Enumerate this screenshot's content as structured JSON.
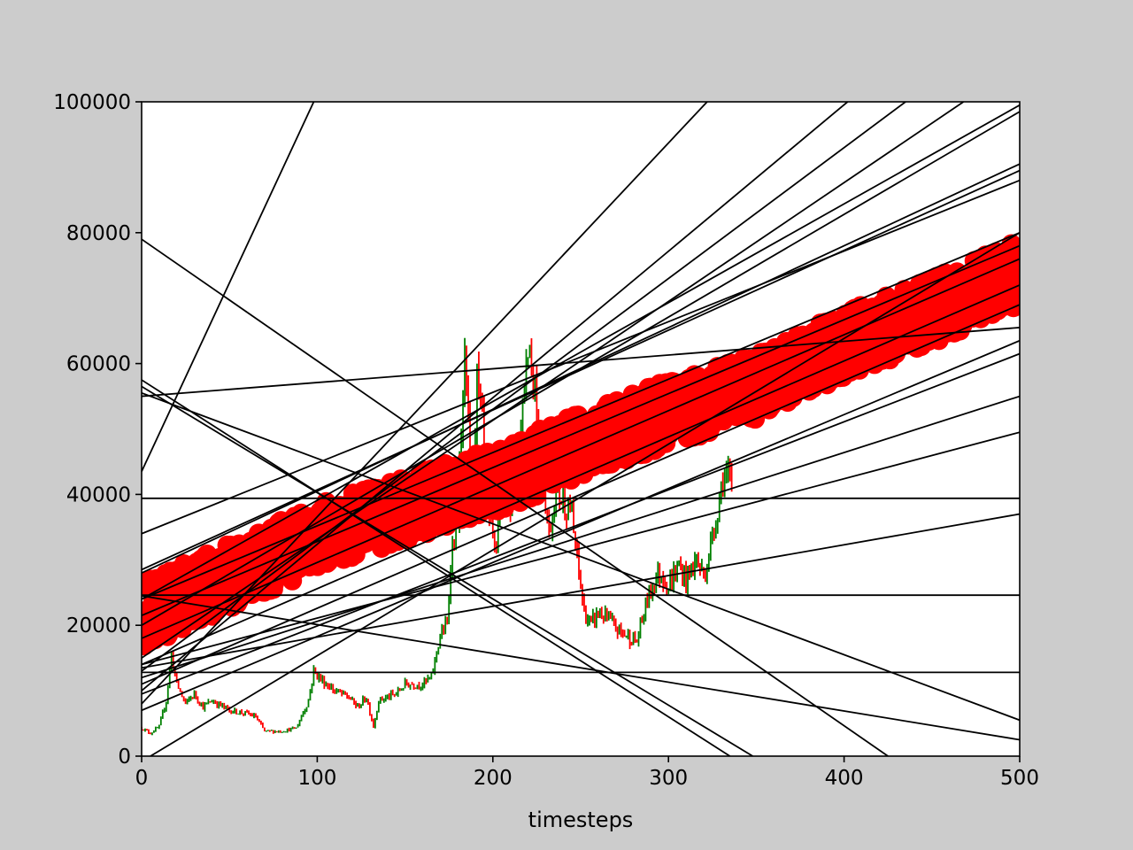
{
  "chart_data": {
    "type": "line",
    "title": "",
    "xlabel": "timesteps",
    "ylabel": "",
    "xlim": [
      0,
      500
    ],
    "ylim": [
      0,
      100000
    ],
    "xticks": [
      0,
      100,
      200,
      300,
      400,
      500
    ],
    "xtick_labels": [
      "0",
      "100",
      "200",
      "300",
      "400",
      "500"
    ],
    "yticks": [
      0,
      20000,
      40000,
      60000,
      80000,
      100000
    ],
    "ytick_labels": [
      "0",
      "20000",
      "40000",
      "60000",
      "80000",
      "100000"
    ],
    "grid": false,
    "legend": "none",
    "colors": {
      "figure_background": "#cccccc",
      "plot_background": "#ffffff",
      "candle_up": "#008000",
      "candle_down": "#ff0000",
      "prediction_points": "#ff0000",
      "trend_lines": "#000000"
    },
    "price_series": {
      "style": "candlestick",
      "x_range": [
        0,
        336
      ],
      "close_keypoints": [
        [
          0,
          4300
        ],
        [
          5,
          3500
        ],
        [
          10,
          4500
        ],
        [
          14,
          8500
        ],
        [
          17,
          15500
        ],
        [
          20,
          11000
        ],
        [
          25,
          8000
        ],
        [
          30,
          9500
        ],
        [
          35,
          7500
        ],
        [
          40,
          8500
        ],
        [
          50,
          7000
        ],
        [
          60,
          6500
        ],
        [
          65,
          6000
        ],
        [
          70,
          3800
        ],
        [
          80,
          3800
        ],
        [
          88,
          4300
        ],
        [
          95,
          8500
        ],
        [
          98,
          13000
        ],
        [
          103,
          11500
        ],
        [
          110,
          10000
        ],
        [
          118,
          9000
        ],
        [
          123,
          7500
        ],
        [
          128,
          9000
        ],
        [
          132,
          4500
        ],
        [
          135,
          8500
        ],
        [
          145,
          9500
        ],
        [
          150,
          11000
        ],
        [
          160,
          11000
        ],
        [
          165,
          12000
        ],
        [
          170,
          18500
        ],
        [
          174,
          20000
        ],
        [
          176,
          30000
        ],
        [
          180,
          37000
        ],
        [
          184,
          59000
        ],
        [
          188,
          42000
        ],
        [
          191,
          57000
        ],
        [
          194,
          50000
        ],
        [
          198,
          35000
        ],
        [
          202,
          32000
        ],
        [
          206,
          45000
        ],
        [
          210,
          40000
        ],
        [
          215,
          48000
        ],
        [
          220,
          63000
        ],
        [
          224,
          57000
        ],
        [
          228,
          44000
        ],
        [
          232,
          34000
        ],
        [
          236,
          41000
        ],
        [
          240,
          39000
        ],
        [
          244,
          38000
        ],
        [
          248,
          30000
        ],
        [
          252,
          22000
        ],
        [
          256,
          20000
        ],
        [
          260,
          22000
        ],
        [
          265,
          21000
        ],
        [
          270,
          19500
        ],
        [
          276,
          18500
        ],
        [
          282,
          17500
        ],
        [
          287,
          23000
        ],
        [
          292,
          27000
        ],
        [
          296,
          28000
        ],
        [
          300,
          26000
        ],
        [
          306,
          29000
        ],
        [
          310,
          27000
        ],
        [
          316,
          30000
        ],
        [
          320,
          27500
        ],
        [
          324,
          32000
        ],
        [
          328,
          38000
        ],
        [
          331,
          43000
        ],
        [
          334,
          42000
        ],
        [
          336,
          40500
        ]
      ]
    },
    "prediction_points": {
      "marker": "circle",
      "x_range": [
        0,
        500
      ],
      "spread": 5000,
      "centerline_keypoints": [
        [
          0,
          21500
        ],
        [
          100,
          33500
        ],
        [
          200,
          42000
        ],
        [
          250,
          47500
        ],
        [
          300,
          52500
        ],
        [
          350,
          56500
        ],
        [
          400,
          63000
        ],
        [
          450,
          68000
        ],
        [
          500,
          74000
        ]
      ]
    },
    "trend_lines": [
      {
        "x0": 0,
        "y0": 43500,
        "x1": 98,
        "y1": 100000
      },
      {
        "x0": 0,
        "y0": 79000,
        "x1": 425,
        "y1": 0
      },
      {
        "x0": 0,
        "y0": 57500,
        "x1": 335,
        "y1": 0
      },
      {
        "x0": 0,
        "y0": 56500,
        "x1": 348,
        "y1": 0
      },
      {
        "x0": 0,
        "y0": 55500,
        "x1": 500,
        "y1": 5500
      },
      {
        "x0": 0,
        "y0": 55000,
        "x1": 500,
        "y1": 65500
      },
      {
        "x0": 0,
        "y0": 24500,
        "x1": 500,
        "y1": 2500
      },
      {
        "x0": 0,
        "y0": 39400,
        "x1": 500,
        "y1": 39400
      },
      {
        "x0": 0,
        "y0": 24600,
        "x1": 500,
        "y1": 24600
      },
      {
        "x0": 0,
        "y0": 12800,
        "x1": 500,
        "y1": 12800
      },
      {
        "x0": 0,
        "y0": 8000,
        "x1": 322,
        "y1": 100000
      },
      {
        "x0": 0,
        "y0": 10000,
        "x1": 402,
        "y1": 100000
      },
      {
        "x0": 0,
        "y0": 13000,
        "x1": 435,
        "y1": 100000
      },
      {
        "x0": 0,
        "y0": 15000,
        "x1": 468,
        "y1": 100000
      },
      {
        "x0": 0,
        "y0": 20000,
        "x1": 500,
        "y1": 98500
      },
      {
        "x0": 0,
        "y0": 24000,
        "x1": 500,
        "y1": 99500
      },
      {
        "x0": 0,
        "y0": 28000,
        "x1": 500,
        "y1": 90500
      },
      {
        "x0": 0,
        "y0": 28500,
        "x1": 500,
        "y1": 89500
      },
      {
        "x0": 0,
        "y0": 34000,
        "x1": 500,
        "y1": 88000
      },
      {
        "x0": 0,
        "y0": 24000,
        "x1": 500,
        "y1": 80000
      },
      {
        "x0": 0,
        "y0": 21500,
        "x1": 500,
        "y1": 78000
      },
      {
        "x0": 0,
        "y0": 18000,
        "x1": 500,
        "y1": 76000
      },
      {
        "x0": 0,
        "y0": 14000,
        "x1": 500,
        "y1": 72000
      },
      {
        "x0": 0,
        "y0": 11000,
        "x1": 500,
        "y1": 69000
      },
      {
        "x0": 0,
        "y0": 7000,
        "x1": 500,
        "y1": 63500
      },
      {
        "x0": 0,
        "y0": 9500,
        "x1": 500,
        "y1": 61500
      },
      {
        "x0": 0,
        "y0": 12000,
        "x1": 500,
        "y1": 55000
      },
      {
        "x0": 0,
        "y0": 14000,
        "x1": 500,
        "y1": 49500
      },
      {
        "x0": 0,
        "y0": 13500,
        "x1": 500,
        "y1": 37000
      },
      {
        "x0": 5,
        "y0": 0,
        "x1": 500,
        "y1": 80000
      }
    ]
  }
}
